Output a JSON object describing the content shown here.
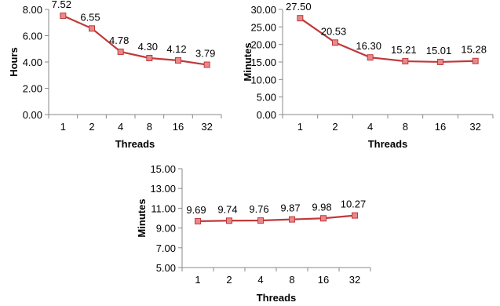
{
  "chart_data": [
    {
      "type": "line",
      "categories": [
        "1",
        "2",
        "4",
        "8",
        "16",
        "32"
      ],
      "series": [
        {
          "values": [
            7.52,
            6.55,
            4.78,
            4.3,
            4.12,
            3.79
          ]
        }
      ],
      "data_labels": [
        "7.52",
        "6.55",
        "4.78",
        "4.30",
        "4.12",
        "3.79"
      ],
      "xlabel": "Threads",
      "ylabel": "Hours",
      "ylim": [
        0,
        8
      ],
      "yticks": [
        "0.00",
        "2.00",
        "4.00",
        "6.00",
        "8.00"
      ],
      "grid": false,
      "line_color": "#c0393b",
      "marker_color": "#e8898a"
    },
    {
      "type": "line",
      "categories": [
        "1",
        "2",
        "4",
        "8",
        "16",
        "32"
      ],
      "series": [
        {
          "values": [
            27.5,
            20.53,
            16.3,
            15.21,
            15.01,
            15.28
          ]
        }
      ],
      "data_labels": [
        "27.50",
        "20.53",
        "16.30",
        "15.21",
        "15.01",
        "15.28"
      ],
      "xlabel": "Threads",
      "ylabel": "Minutes",
      "ylim": [
        0,
        30
      ],
      "yticks": [
        "0.00",
        "5.00",
        "10.00",
        "15.00",
        "20.00",
        "25.00",
        "30.00"
      ],
      "grid": false,
      "line_color": "#c0393b",
      "marker_color": "#e8898a"
    },
    {
      "type": "line",
      "categories": [
        "1",
        "2",
        "4",
        "8",
        "16",
        "32"
      ],
      "series": [
        {
          "values": [
            9.69,
            9.74,
            9.76,
            9.87,
            9.98,
            10.27
          ]
        }
      ],
      "data_labels": [
        "9.69",
        "9.74",
        "9.76",
        "9.87",
        "9.98",
        "10.27"
      ],
      "xlabel": "Threads",
      "ylabel": "Minutes",
      "ylim": [
        5,
        15
      ],
      "yticks": [
        "5.00",
        "7.00",
        "9.00",
        "11.00",
        "13.00",
        "15.00"
      ],
      "grid": false,
      "line_color": "#c0393b",
      "marker_color": "#e8898a"
    }
  ]
}
